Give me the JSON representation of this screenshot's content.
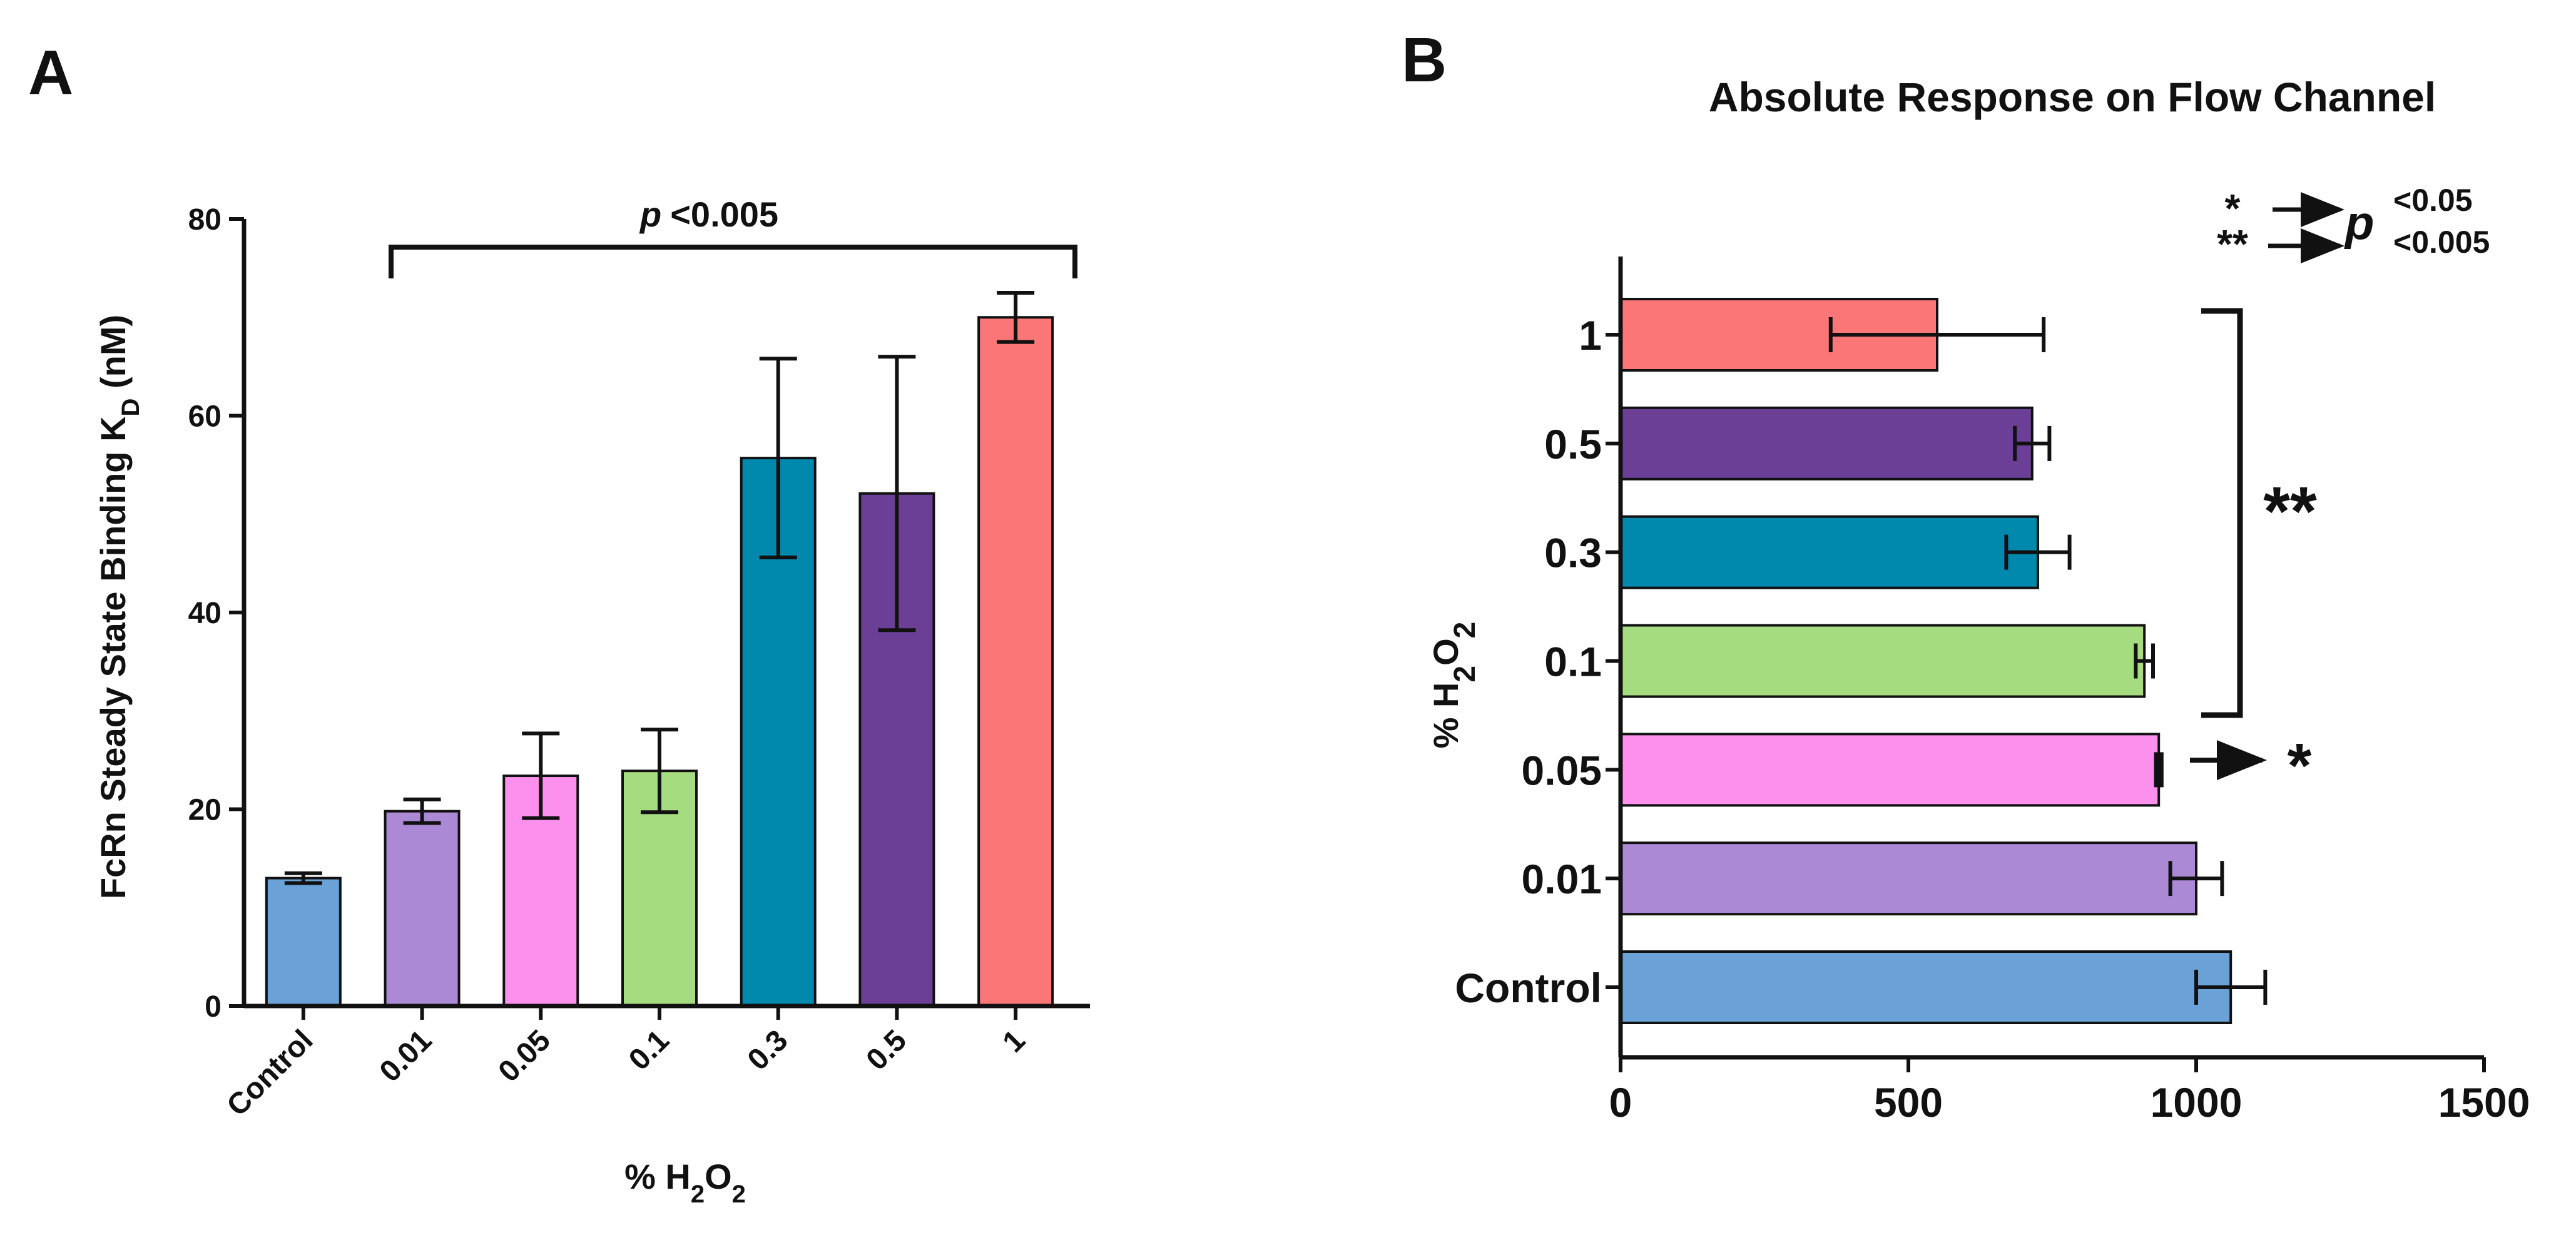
{
  "colors": {
    "control": "#6aa1d6",
    "p001": "#ab89d4",
    "p005": "#fc90ec",
    "p01": "#a6dc80",
    "p03": "#0088ad",
    "p05": "#6a3f95",
    "p1": "#fa7677",
    "axis": "#111111"
  },
  "chart_data": [
    {
      "panel": "A",
      "type": "bar",
      "title": "",
      "xlabel": "% H2O2",
      "ylabel": "FcRn Steady State Binding KD (nM)",
      "categories": [
        "Control",
        "0.01",
        "0.05",
        "0.1",
        "0.3",
        "0.5",
        "1"
      ],
      "values": [
        13.0,
        19.8,
        23.4,
        23.9,
        55.7,
        52.1,
        70.0
      ],
      "errors": [
        0.5,
        1.2,
        4.3,
        4.2,
        10.1,
        13.9,
        2.5
      ],
      "ylim": [
        0,
        80
      ],
      "yticks": [
        0,
        20,
        40,
        60,
        80
      ],
      "annotation": {
        "p": "p",
        "text": "<0.005"
      }
    },
    {
      "panel": "B",
      "type": "bar",
      "orientation": "horizontal",
      "title": "Absolute Response on Flow Channel",
      "xlabel": "",
      "ylabel": "% H2O2",
      "categories": [
        "1",
        "0.5",
        "0.3",
        "0.1",
        "0.05",
        "0.01",
        "Control"
      ],
      "values": [
        550,
        715,
        725,
        910,
        935,
        1000,
        1060
      ],
      "errors": [
        185,
        30,
        55,
        15,
        5,
        45,
        60
      ],
      "xlim": [
        0,
        1500
      ],
      "xticks": [
        0,
        500,
        1000,
        1500
      ],
      "significance": {
        "bracket": "**",
        "single": "*",
        "legend": [
          {
            "symbol": "*",
            "p": "p",
            "text": "<0.05"
          },
          {
            "symbol": "**",
            "text": "<0.005"
          }
        ]
      }
    }
  ]
}
